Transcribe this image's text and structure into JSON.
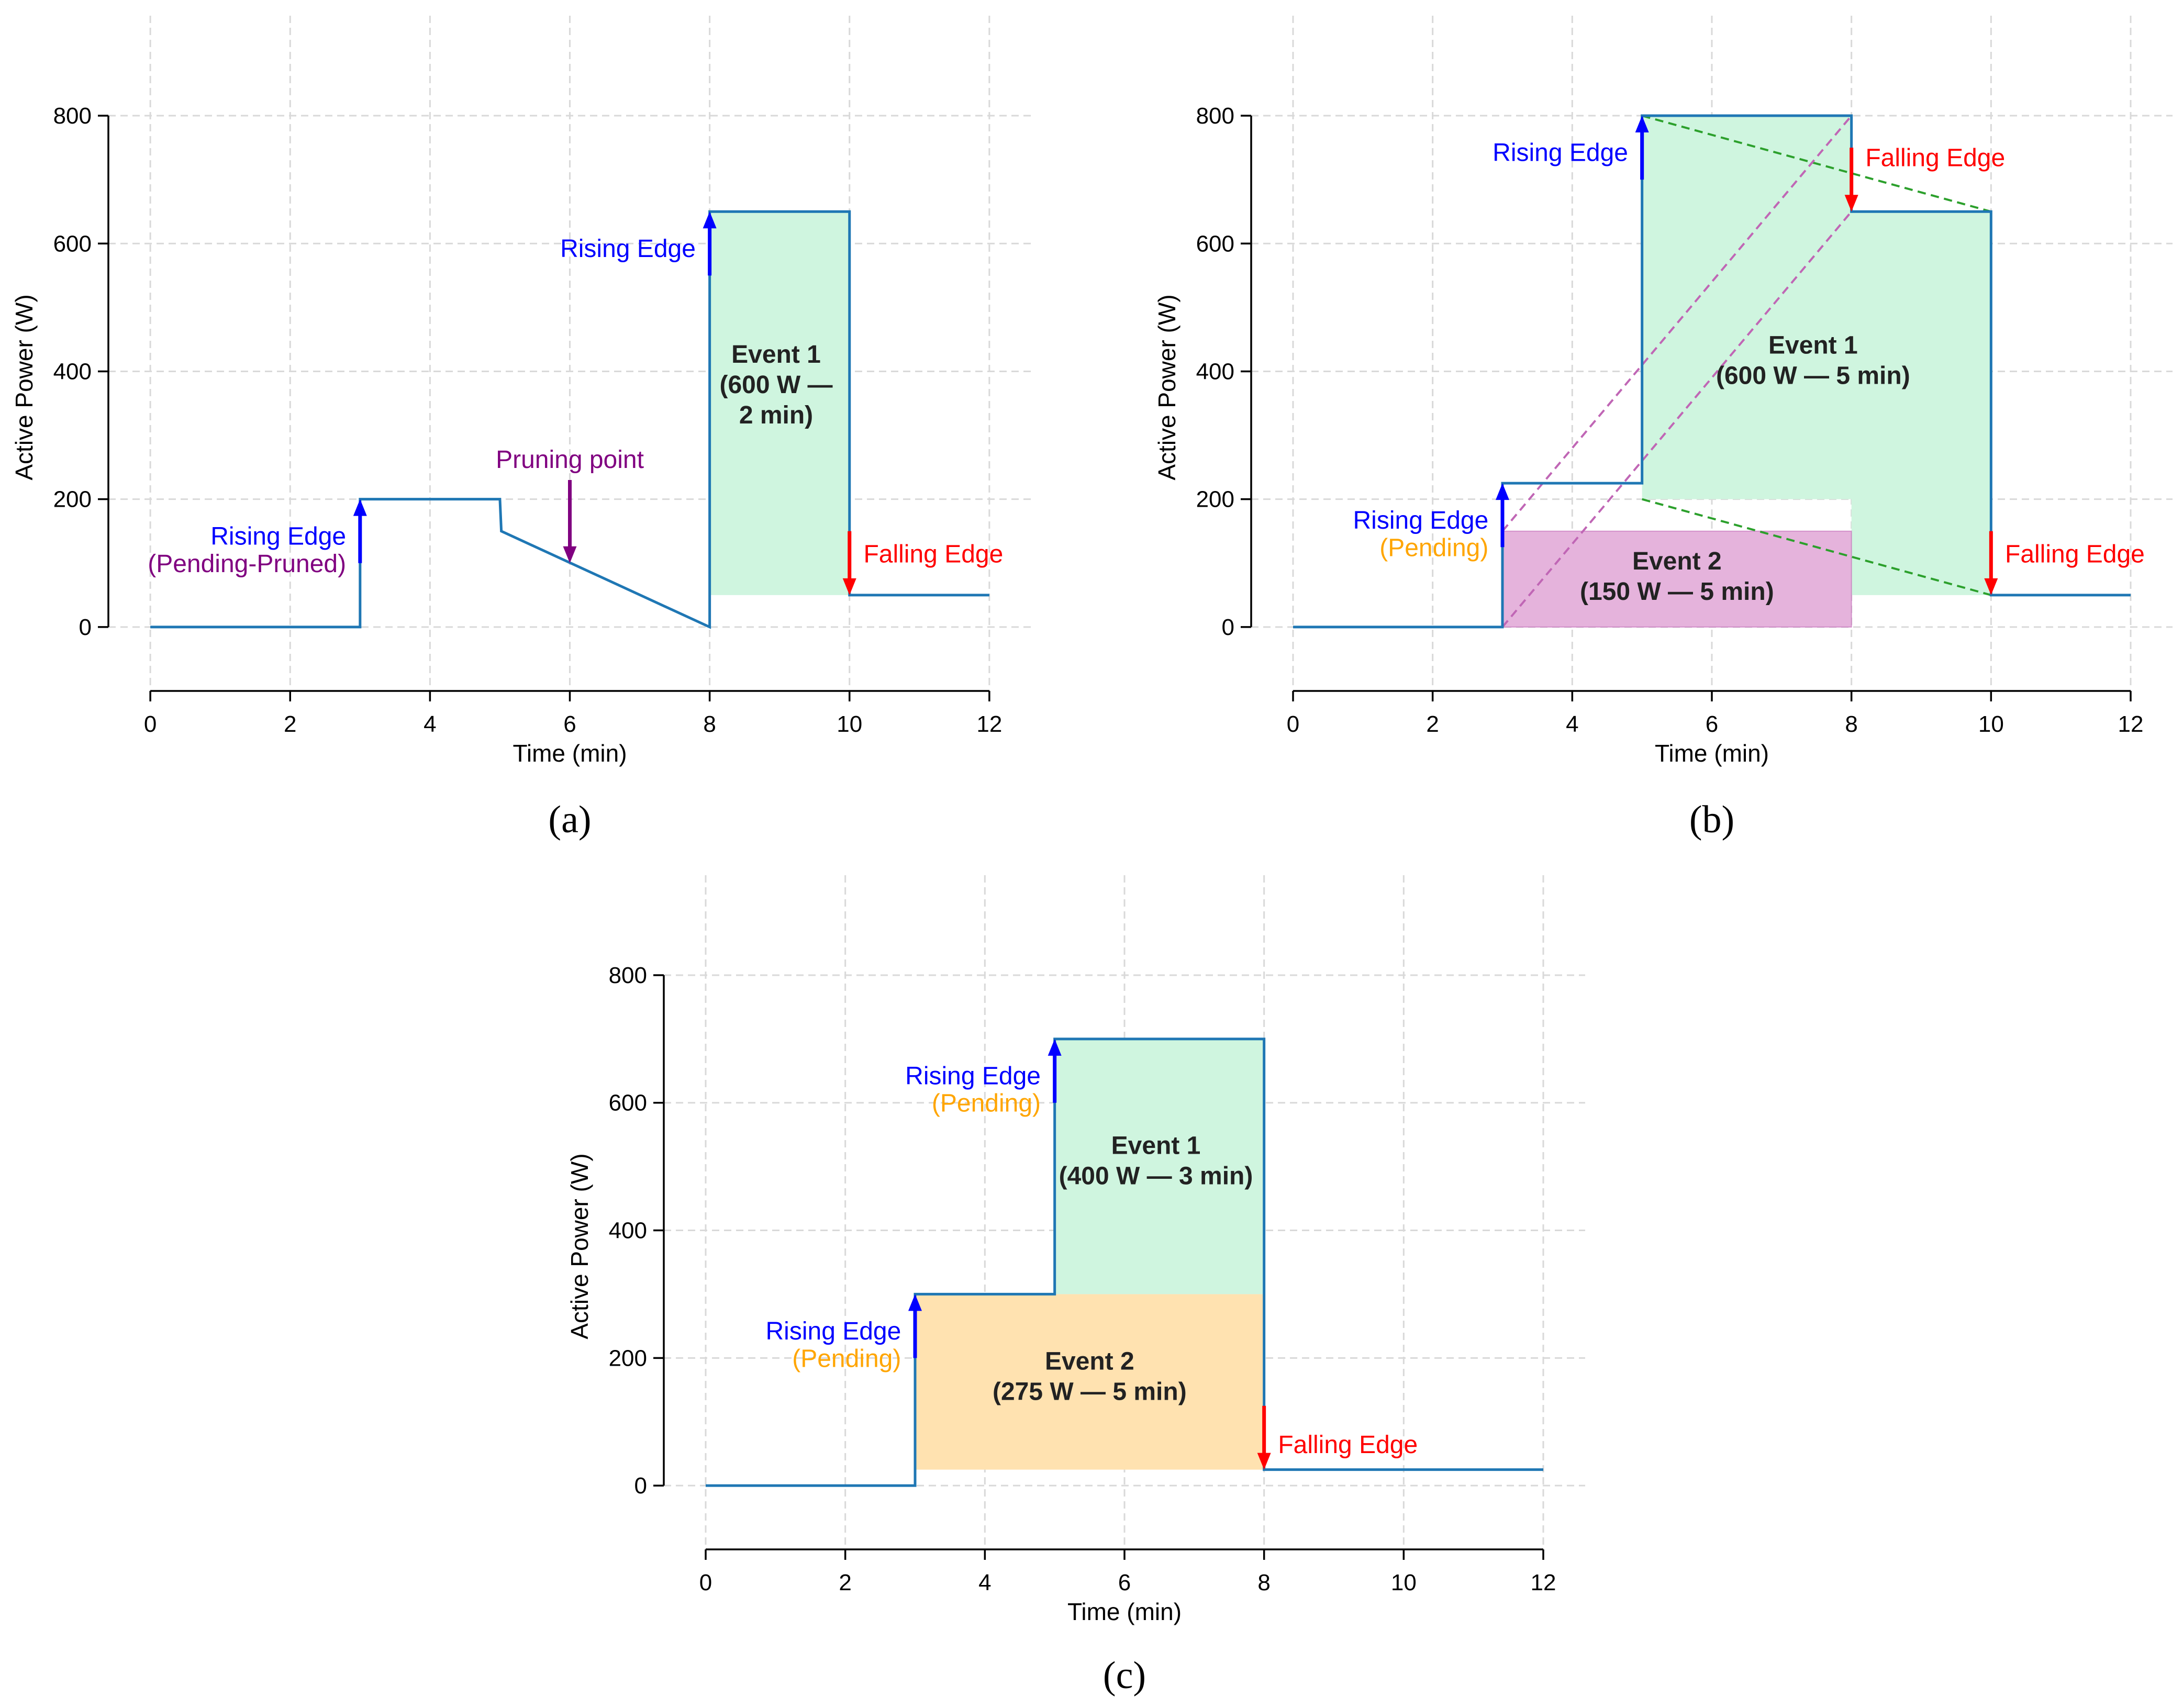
{
  "colors": {
    "line": "#1f77b4",
    "grid": "#d9d9d9",
    "rising": "#0000ff",
    "falling": "#ff0000",
    "pruned": "#800080",
    "pending": "#ffa500",
    "event_green": "#cff5df",
    "event_green_stroke": "#2ca02c",
    "event_pink": "#e5b3dc",
    "event_pink_stroke": "#c066b5",
    "event_orange": "#ffe2b0",
    "text_dark": "#222222"
  },
  "chart_data": [
    {
      "id": "a",
      "type": "line",
      "panel_label": "(a)",
      "xlabel": "Time (min)",
      "ylabel": "Active Power (W)",
      "xlim": [
        -0.6,
        12.6
      ],
      "ylim": [
        -100,
        850
      ],
      "xticks": [
        0,
        2,
        4,
        6,
        8,
        10,
        12
      ],
      "yticks": [
        0,
        200,
        400,
        600,
        800
      ],
      "grid": true,
      "series": [
        {
          "name": "Active Power",
          "points": [
            [
              0,
              0
            ],
            [
              3,
              0
            ],
            [
              3,
              200
            ],
            [
              5,
              200
            ],
            [
              5.02,
              150
            ],
            [
              8,
              0
            ],
            [
              8,
              650
            ],
            [
              10,
              650
            ],
            [
              10,
              50
            ],
            [
              12,
              50
            ]
          ]
        }
      ],
      "regions": [
        {
          "name": "Event 1",
          "x": [
            8,
            10
          ],
          "y": [
            50,
            650
          ],
          "fill": "event_green"
        }
      ],
      "region_labels": [
        {
          "lines": [
            "Event 1",
            "(600 W —",
            "2 min)"
          ],
          "x": 8.95,
          "y": 380
        }
      ],
      "arrows": [
        {
          "kind": "rising",
          "x": 3,
          "y_from": 100,
          "y_to": 200,
          "color": "rising"
        },
        {
          "kind": "rising",
          "x": 8,
          "y_from": 550,
          "y_to": 650,
          "color": "rising"
        },
        {
          "kind": "falling",
          "x": 10,
          "y_from": 150,
          "y_to": 50,
          "color": "falling"
        },
        {
          "kind": "pruning",
          "x": 6,
          "y_from": 230,
          "y_to": 100,
          "color": "pruned"
        }
      ],
      "annotations": [
        {
          "text": "Rising Edge",
          "x": 2.8,
          "y": 143,
          "anchor": "end",
          "color": "rising"
        },
        {
          "text": "(Pending-Pruned)",
          "x": 2.8,
          "y": 100,
          "anchor": "end",
          "color": "pruned"
        },
        {
          "text": "Rising Edge",
          "x": 7.8,
          "y": 593,
          "anchor": "end",
          "color": "rising"
        },
        {
          "text": "Falling Edge",
          "x": 10.2,
          "y": 115,
          "anchor": "start",
          "color": "falling"
        },
        {
          "text": "Pruning point",
          "x": 6,
          "y": 263,
          "anchor": "middle",
          "color": "pruned"
        }
      ]
    },
    {
      "id": "b",
      "type": "line",
      "panel_label": "(b)",
      "xlabel": "Time (min)",
      "ylabel": "Active Power (W)",
      "xlim": [
        -0.6,
        12.6
      ],
      "ylim": [
        -100,
        850
      ],
      "xticks": [
        0,
        2,
        4,
        6,
        8,
        10,
        12
      ],
      "yticks": [
        0,
        200,
        400,
        600,
        800
      ],
      "grid": true,
      "series": [
        {
          "name": "Active Power",
          "points": [
            [
              0,
              0
            ],
            [
              3,
              0
            ],
            [
              3,
              225
            ],
            [
              5,
              225
            ],
            [
              5,
              800
            ],
            [
              8,
              800
            ],
            [
              8,
              650
            ],
            [
              10,
              650
            ],
            [
              10,
              50
            ],
            [
              12,
              50
            ]
          ]
        }
      ],
      "regions": [
        {
          "name": "Event 1",
          "polygon": [
            [
              5,
              800
            ],
            [
              8,
              800
            ],
            [
              8,
              650
            ],
            [
              10,
              650
            ],
            [
              10,
              50
            ],
            [
              8,
              50
            ],
            [
              8,
              200
            ],
            [
              5,
              200
            ]
          ],
          "fill": "event_green"
        },
        {
          "name": "Event 2",
          "x": [
            3,
            8
          ],
          "y": [
            0,
            150
          ],
          "fill": "event_pink"
        }
      ],
      "region_labels": [
        {
          "lines": [
            "Event 1",
            "(600 W — 5 min)"
          ],
          "x": 7.45,
          "y": 418
        },
        {
          "lines": [
            "Event 2",
            "(150 W — 5 min)"
          ],
          "x": 5.5,
          "y": 80
        }
      ],
      "dashed_lines": [
        {
          "from": [
            5,
            800
          ],
          "to": [
            10,
            650
          ],
          "color": "event_green_stroke"
        },
        {
          "from": [
            5,
            200
          ],
          "to": [
            10,
            50
          ],
          "color": "event_green_stroke"
        },
        {
          "from": [
            3,
            150
          ],
          "to": [
            8,
            800
          ],
          "color": "event_pink_stroke"
        },
        {
          "from": [
            3,
            0
          ],
          "to": [
            8,
            650
          ],
          "color": "event_pink_stroke"
        }
      ],
      "arrows": [
        {
          "kind": "rising",
          "x": 3,
          "y_from": 125,
          "y_to": 225,
          "color": "rising"
        },
        {
          "kind": "rising",
          "x": 5,
          "y_from": 700,
          "y_to": 800,
          "color": "rising"
        },
        {
          "kind": "falling",
          "x": 8,
          "y_from": 750,
          "y_to": 650,
          "color": "falling"
        },
        {
          "kind": "falling",
          "x": 10,
          "y_from": 150,
          "y_to": 50,
          "color": "falling"
        }
      ],
      "annotations": [
        {
          "text": "Rising Edge",
          "x": 2.8,
          "y": 168,
          "anchor": "end",
          "color": "rising"
        },
        {
          "text": "(Pending)",
          "x": 2.8,
          "y": 125,
          "anchor": "end",
          "color": "pending"
        },
        {
          "text": "Rising Edge",
          "x": 4.8,
          "y": 743,
          "anchor": "end",
          "color": "rising"
        },
        {
          "text": "Falling Edge",
          "x": 8.2,
          "y": 735,
          "anchor": "start",
          "color": "falling"
        },
        {
          "text": "Falling Edge",
          "x": 10.2,
          "y": 115,
          "anchor": "start",
          "color": "falling"
        }
      ]
    },
    {
      "id": "c",
      "type": "line",
      "panel_label": "(c)",
      "xlabel": "Time (min)",
      "ylabel": "Active Power (W)",
      "xlim": [
        -0.6,
        12.6
      ],
      "ylim": [
        -100,
        850
      ],
      "xticks": [
        0,
        2,
        4,
        6,
        8,
        10,
        12
      ],
      "yticks": [
        0,
        200,
        400,
        600,
        800
      ],
      "grid": true,
      "series": [
        {
          "name": "Active Power",
          "points": [
            [
              0,
              0
            ],
            [
              3,
              0
            ],
            [
              3,
              300
            ],
            [
              5,
              300
            ],
            [
              5,
              700
            ],
            [
              8,
              700
            ],
            [
              8,
              25
            ],
            [
              12,
              25
            ]
          ]
        }
      ],
      "regions": [
        {
          "name": "Event 1",
          "x": [
            5,
            8
          ],
          "y": [
            300,
            700
          ],
          "fill": "event_green"
        },
        {
          "name": "Event 2",
          "x": [
            3,
            8
          ],
          "y": [
            25,
            300
          ],
          "fill": "event_orange"
        }
      ],
      "region_labels": [
        {
          "lines": [
            "Event 1",
            "(400 W — 3 min)"
          ],
          "x": 6.45,
          "y": 510
        },
        {
          "lines": [
            "Event 2",
            "(275 W — 5 min)"
          ],
          "x": 5.5,
          "y": 172
        }
      ],
      "arrows": [
        {
          "kind": "rising",
          "x": 3,
          "y_from": 200,
          "y_to": 300,
          "color": "rising"
        },
        {
          "kind": "rising",
          "x": 5,
          "y_from": 600,
          "y_to": 700,
          "color": "rising"
        },
        {
          "kind": "falling",
          "x": 8,
          "y_from": 125,
          "y_to": 25,
          "color": "falling"
        }
      ],
      "annotations": [
        {
          "text": "Rising Edge",
          "x": 2.8,
          "y": 243,
          "anchor": "end",
          "color": "rising"
        },
        {
          "text": "(Pending)",
          "x": 2.8,
          "y": 200,
          "anchor": "end",
          "color": "pending"
        },
        {
          "text": "Rising Edge",
          "x": 4.8,
          "y": 643,
          "anchor": "end",
          "color": "rising"
        },
        {
          "text": "(Pending)",
          "x": 4.8,
          "y": 600,
          "anchor": "end",
          "color": "pending"
        },
        {
          "text": "Falling Edge",
          "x": 8.2,
          "y": 65,
          "anchor": "start",
          "color": "falling"
        }
      ]
    }
  ]
}
